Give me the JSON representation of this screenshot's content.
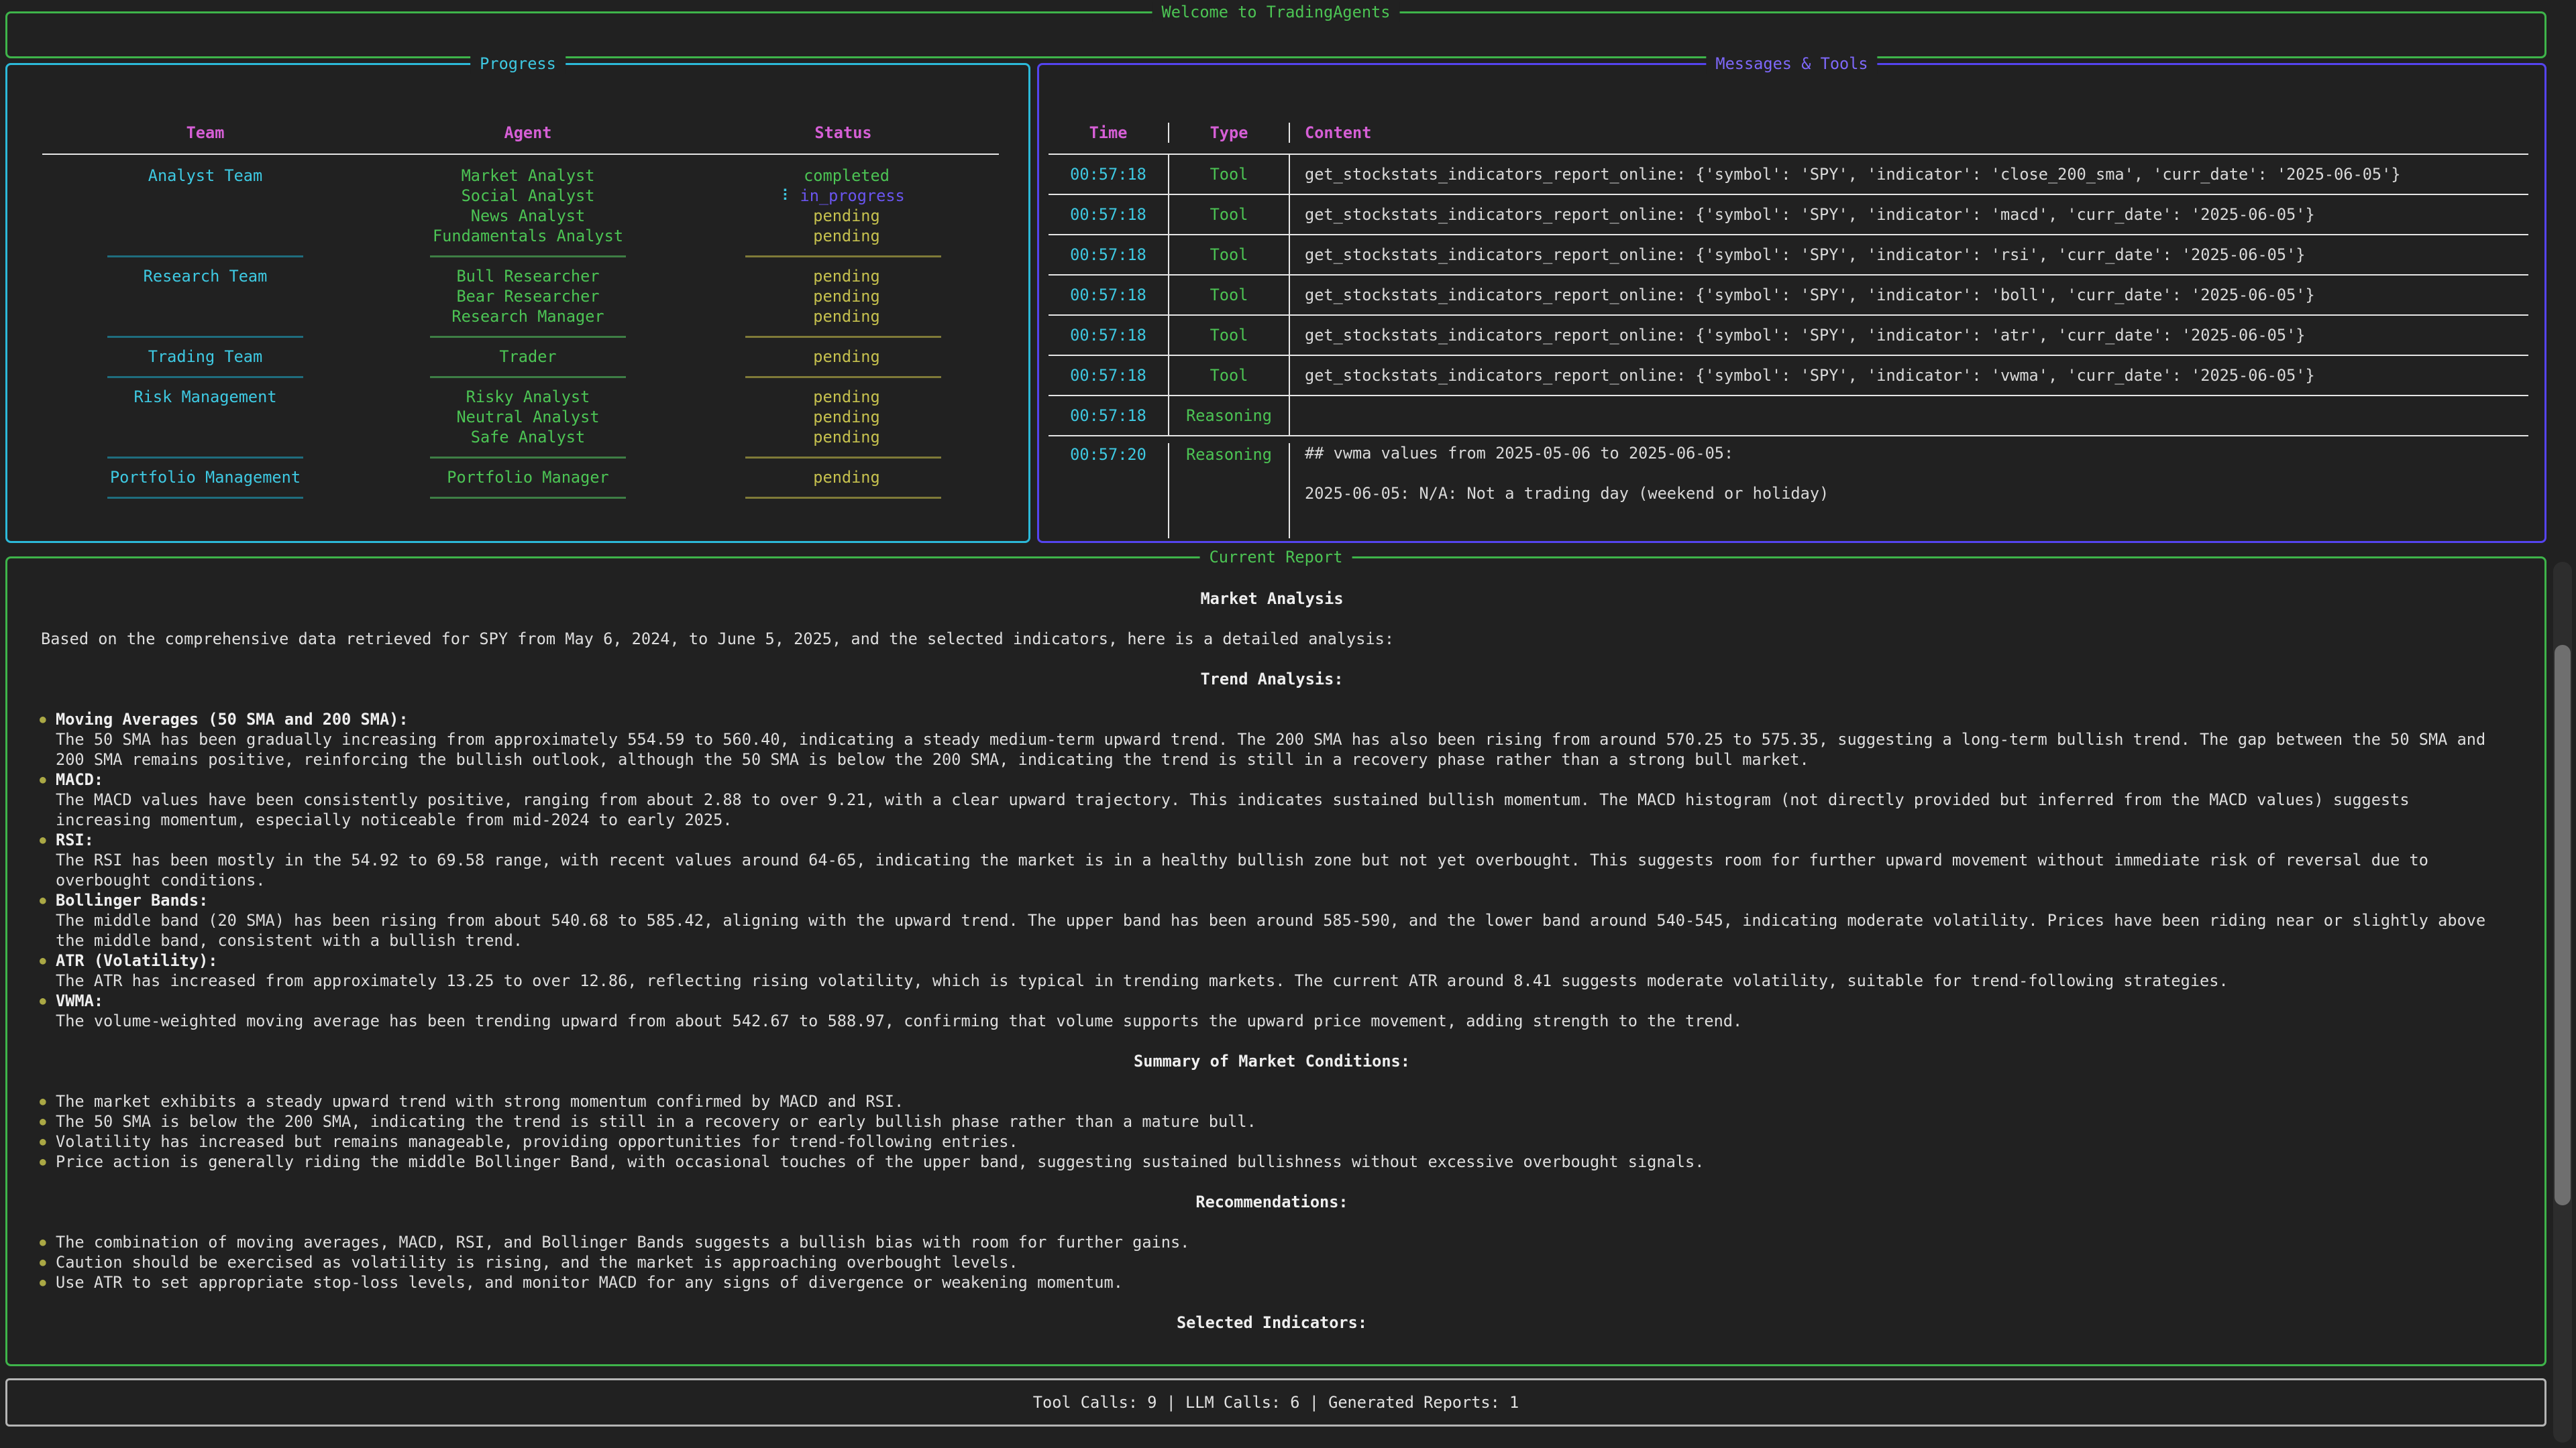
{
  "app": {
    "title": "Welcome to TradingAgents"
  },
  "colors": {
    "background": "#212121",
    "green": "#4cc454",
    "cyan": "#3ec9e2",
    "magenta": "#d65fd6",
    "purple": "#6a55f0",
    "yellow": "#c6c14e",
    "white": "#dedede"
  },
  "progress": {
    "title": "Progress",
    "columns": [
      "Team",
      "Agent",
      "Status"
    ],
    "spinner_glyph": "⠇",
    "rows": [
      {
        "team": "Analyst Team",
        "agent": "Market Analyst",
        "status": "completed",
        "state": "completed"
      },
      {
        "team": "",
        "agent": "Social Analyst",
        "status": "in_progress",
        "state": "in_progress"
      },
      {
        "team": "",
        "agent": "News Analyst",
        "status": "pending",
        "state": "pending"
      },
      {
        "team": "",
        "agent": "Fundamentals Analyst",
        "status": "pending",
        "state": "pending"
      },
      {
        "sep": true
      },
      {
        "team": "Research Team",
        "agent": "Bull Researcher",
        "status": "pending",
        "state": "pending"
      },
      {
        "team": "",
        "agent": "Bear Researcher",
        "status": "pending",
        "state": "pending"
      },
      {
        "team": "",
        "agent": "Research Manager",
        "status": "pending",
        "state": "pending"
      },
      {
        "sep": true
      },
      {
        "team": "Trading Team",
        "agent": "Trader",
        "status": "pending",
        "state": "pending"
      },
      {
        "sep": true
      },
      {
        "team": "Risk Management",
        "agent": "Risky Analyst",
        "status": "pending",
        "state": "pending"
      },
      {
        "team": "",
        "agent": "Neutral Analyst",
        "status": "pending",
        "state": "pending"
      },
      {
        "team": "",
        "agent": "Safe Analyst",
        "status": "pending",
        "state": "pending"
      },
      {
        "sep": true
      },
      {
        "team": "Portfolio Management",
        "agent": "Portfolio Manager",
        "status": "pending",
        "state": "pending"
      },
      {
        "sep": true
      }
    ]
  },
  "messages": {
    "title": "Messages & Tools",
    "columns": [
      "Time",
      "Type",
      "Content"
    ],
    "rows": [
      {
        "time": "00:57:18",
        "type": "Tool",
        "content": "get_stockstats_indicators_report_online: {'symbol': 'SPY', 'indicator': 'close_200_sma', 'curr_date': '2025-06-05'}"
      },
      {
        "time": "00:57:18",
        "type": "Tool",
        "content": "get_stockstats_indicators_report_online: {'symbol': 'SPY', 'indicator': 'macd', 'curr_date': '2025-06-05'}"
      },
      {
        "time": "00:57:18",
        "type": "Tool",
        "content": "get_stockstats_indicators_report_online: {'symbol': 'SPY', 'indicator': 'rsi', 'curr_date': '2025-06-05'}"
      },
      {
        "time": "00:57:18",
        "type": "Tool",
        "content": "get_stockstats_indicators_report_online: {'symbol': 'SPY', 'indicator': 'boll', 'curr_date': '2025-06-05'}"
      },
      {
        "time": "00:57:18",
        "type": "Tool",
        "content": "get_stockstats_indicators_report_online: {'symbol': 'SPY', 'indicator': 'atr', 'curr_date': '2025-06-05'}"
      },
      {
        "time": "00:57:18",
        "type": "Tool",
        "content": "get_stockstats_indicators_report_online: {'symbol': 'SPY', 'indicator': 'vwma', 'curr_date': '2025-06-05'}"
      },
      {
        "time": "00:57:18",
        "type": "Reasoning",
        "content": ""
      },
      {
        "time": "00:57:20",
        "type": "Reasoning",
        "content": "## vwma values from 2025-05-06 to 2025-06-05:\n\n2025-06-05: N/A: Not a trading day (weekend or holiday)"
      }
    ]
  },
  "report": {
    "title": "Current Report",
    "heading": "Market Analysis",
    "intro": "Based on the comprehensive data retrieved for SPY from May 6, 2024, to June 5, 2025, and the selected indicators, here is a detailed analysis:",
    "sections": [
      {
        "heading": "Trend Analysis:",
        "bullets": [
          {
            "head": "Moving Averages (50 SMA and 200 SMA):",
            "body": "The 50 SMA has been gradually increasing from approximately 554.59 to 560.40, indicating a steady medium-term upward trend. The 200 SMA has also been rising from around 570.25 to 575.35, suggesting a long-term bullish trend. The gap between the 50 SMA and 200 SMA remains positive, reinforcing the bullish outlook, although the 50 SMA is below the 200 SMA, indicating the trend is still in a recovery phase rather than a strong bull market."
          },
          {
            "head": "MACD:",
            "body": "The MACD values have been consistently positive, ranging from about 2.88 to over 9.21, with a clear upward trajectory. This indicates sustained bullish momentum. The MACD histogram (not directly provided but inferred from the MACD values) suggests increasing momentum, especially noticeable from mid-2024 to early 2025."
          },
          {
            "head": "RSI:",
            "body": "The RSI has been mostly in the 54.92 to 69.58 range, with recent values around 64-65, indicating the market is in a healthy bullish zone but not yet overbought. This suggests room for further upward movement without immediate risk of reversal due to overbought conditions."
          },
          {
            "head": "Bollinger Bands:",
            "body": "The middle band (20 SMA) has been rising from about 540.68 to 585.42, aligning with the upward trend. The upper band has been around 585-590, and the lower band around 540-545, indicating moderate volatility. Prices have been riding near or slightly above the middle band, consistent with a bullish trend."
          },
          {
            "head": "ATR (Volatility):",
            "body": "The ATR has increased from approximately 13.25 to over 12.86, reflecting rising volatility, which is typical in trending markets. The current ATR around 8.41 suggests moderate volatility, suitable for trend-following strategies."
          },
          {
            "head": "VWMA:",
            "body": "The volume-weighted moving average has been trending upward from about 542.67 to 588.97, confirming that volume supports the upward price movement, adding strength to the trend."
          }
        ]
      },
      {
        "heading": "Summary of Market Conditions:",
        "bullets": [
          {
            "body": "The market exhibits a steady upward trend with strong momentum confirmed by MACD and RSI."
          },
          {
            "body": "The 50 SMA is below the 200 SMA, indicating the trend is still in a recovery or early bullish phase rather than a mature bull."
          },
          {
            "body": "Volatility has increased but remains manageable, providing opportunities for trend-following entries."
          },
          {
            "body": "Price action is generally riding the middle Bollinger Band, with occasional touches of the upper band, suggesting sustained bullishness without excessive overbought signals."
          }
        ]
      },
      {
        "heading": "Recommendations:",
        "bullets": [
          {
            "body": "The combination of moving averages, MACD, RSI, and Bollinger Bands suggests a bullish bias with room for further gains."
          },
          {
            "body": "Caution should be exercised as volatility is rising, and the market is approaching overbought levels."
          },
          {
            "body": "Use ATR to set appropriate stop-loss levels, and monitor MACD for any signs of divergence or weakening momentum."
          }
        ]
      },
      {
        "heading": "Selected Indicators:",
        "bullets": []
      }
    ]
  },
  "footer": {
    "stats": "Tool Calls: 9 | LLM Calls: 6 | Generated Reports: 1"
  }
}
